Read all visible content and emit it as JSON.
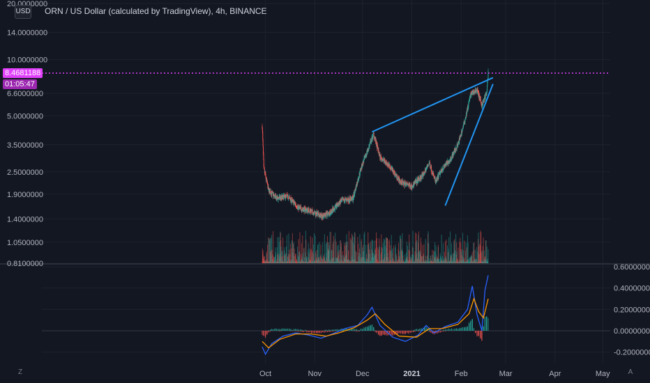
{
  "title": "ORN / US Dollar (calculated by TradingView), 4h, BINANCE",
  "currency_button": "USD",
  "current_price": "8.4681188",
  "countdown": "01:05:47",
  "scale_button": "Z",
  "auto_button": "A",
  "colors": {
    "background": "#131722",
    "up": "#26a69a",
    "down": "#ef5350",
    "trendline": "#2196f3",
    "price_line": "#e040fb",
    "indicator_fast": "#2962ff",
    "indicator_slow": "#ff9800",
    "grid": "#1e222d",
    "text": "#b2b5be"
  },
  "chart_data": [
    {
      "type": "candlestick",
      "title": "ORN / US Dollar (calculated by TradingView), 4h, BINANCE",
      "y_scale": "log",
      "price_ticks": [
        "20.0000000",
        "14.0000000",
        "10.0000000",
        "6.6000000",
        "5.0000000",
        "3.5000000",
        "2.5000000",
        "1.9000000",
        "1.4000000",
        "1.0500000",
        "0.8100000"
      ],
      "price_tick_values": [
        20,
        14,
        10,
        6.6,
        5,
        3.5,
        2.5,
        1.9,
        1.4,
        1.05,
        0.81
      ],
      "x_ticks": [
        "Oct",
        "Nov",
        "Dec",
        "2021",
        "Feb",
        "Mar",
        "Apr",
        "May"
      ],
      "current_price": 8.4681188,
      "close_path": [
        {
          "date": "2020-09-29",
          "price": 4.4
        },
        {
          "date": "2020-09-30",
          "price": 2.6
        },
        {
          "date": "2020-10-03",
          "price": 2.0
        },
        {
          "date": "2020-10-08",
          "price": 1.8
        },
        {
          "date": "2020-10-15",
          "price": 1.85
        },
        {
          "date": "2020-10-22",
          "price": 1.6
        },
        {
          "date": "2020-10-29",
          "price": 1.55
        },
        {
          "date": "2020-11-05",
          "price": 1.45
        },
        {
          "date": "2020-11-10",
          "price": 1.5
        },
        {
          "date": "2020-11-18",
          "price": 1.75
        },
        {
          "date": "2020-11-25",
          "price": 1.8
        },
        {
          "date": "2020-11-30",
          "price": 2.6
        },
        {
          "date": "2020-12-05",
          "price": 3.4
        },
        {
          "date": "2020-12-08",
          "price": 4.0
        },
        {
          "date": "2020-12-12",
          "price": 3.0
        },
        {
          "date": "2020-12-18",
          "price": 2.7
        },
        {
          "date": "2020-12-25",
          "price": 2.2
        },
        {
          "date": "2021-01-01",
          "price": 2.1
        },
        {
          "date": "2021-01-08",
          "price": 2.4
        },
        {
          "date": "2021-01-12",
          "price": 2.8
        },
        {
          "date": "2021-01-16",
          "price": 2.2
        },
        {
          "date": "2021-01-20",
          "price": 2.6
        },
        {
          "date": "2021-01-25",
          "price": 2.9
        },
        {
          "date": "2021-01-30",
          "price": 3.5
        },
        {
          "date": "2021-02-03",
          "price": 4.6
        },
        {
          "date": "2021-02-07",
          "price": 6.5
        },
        {
          "date": "2021-02-11",
          "price": 6.9
        },
        {
          "date": "2021-02-14",
          "price": 5.7
        },
        {
          "date": "2021-02-17",
          "price": 6.6
        },
        {
          "date": "2021-02-18",
          "price": 8.47
        }
      ],
      "trendlines": [
        {
          "name": "upper",
          "from": {
            "date": "2020-12-07",
            "price": 4.1
          },
          "to": {
            "date": "2021-02-21",
            "price": 8.0
          }
        },
        {
          "name": "lower",
          "from": {
            "date": "2021-01-22",
            "price": 1.65
          },
          "to": {
            "date": "2021-02-21",
            "price": 7.4
          }
        }
      ]
    },
    {
      "type": "line",
      "name": "oscillator",
      "y_ticks": [
        "0.6000000",
        "0.4000000",
        "0.2000000",
        "0.0000000",
        "-0.2000000"
      ],
      "y_tick_values": [
        0.6,
        0.4,
        0.2,
        0,
        -0.2
      ],
      "series": [
        {
          "values": [
            {
              "date": "2020-09-29",
              "value": -0.15
            },
            {
              "date": "2020-10-01",
              "value": -0.22
            },
            {
              "date": "2020-10-05",
              "value": -0.12
            },
            {
              "date": "2020-10-12",
              "value": -0.05
            },
            {
              "date": "2020-10-20",
              "value": -0.02
            },
            {
              "date": "2020-10-28",
              "value": -0.04
            },
            {
              "date": "2020-11-05",
              "value": -0.07
            },
            {
              "date": "2020-11-12",
              "value": -0.03
            },
            {
              "date": "2020-11-20",
              "value": 0.02
            },
            {
              "date": "2020-11-28",
              "value": 0.05
            },
            {
              "date": "2020-12-04",
              "value": 0.15
            },
            {
              "date": "2020-12-07",
              "value": 0.22
            },
            {
              "date": "2020-12-12",
              "value": 0.05
            },
            {
              "date": "2020-12-20",
              "value": -0.06
            },
            {
              "date": "2020-12-28",
              "value": -0.1
            },
            {
              "date": "2021-01-05",
              "value": -0.04
            },
            {
              "date": "2021-01-10",
              "value": 0.05
            },
            {
              "date": "2021-01-15",
              "value": -0.02
            },
            {
              "date": "2021-01-22",
              "value": 0.04
            },
            {
              "date": "2021-01-30",
              "value": 0.08
            },
            {
              "date": "2021-02-05",
              "value": 0.2
            },
            {
              "date": "2021-02-08",
              "value": 0.42
            },
            {
              "date": "2021-02-11",
              "value": 0.15
            },
            {
              "date": "2021-02-14",
              "value": 0.0
            },
            {
              "date": "2021-02-16",
              "value": 0.38
            },
            {
              "date": "2021-02-18",
              "value": 0.52
            }
          ]
        },
        {
          "values": [
            {
              "date": "2020-09-29",
              "value": -0.1
            },
            {
              "date": "2020-10-03",
              "value": -0.16
            },
            {
              "date": "2020-10-10",
              "value": -0.08
            },
            {
              "date": "2020-10-20",
              "value": -0.03
            },
            {
              "date": "2020-10-30",
              "value": -0.03
            },
            {
              "date": "2020-11-08",
              "value": -0.05
            },
            {
              "date": "2020-11-16",
              "value": -0.02
            },
            {
              "date": "2020-11-26",
              "value": 0.03
            },
            {
              "date": "2020-12-04",
              "value": 0.1
            },
            {
              "date": "2020-12-09",
              "value": 0.16
            },
            {
              "date": "2020-12-15",
              "value": 0.06
            },
            {
              "date": "2020-12-24",
              "value": -0.05
            },
            {
              "date": "2021-01-04",
              "value": -0.06
            },
            {
              "date": "2021-01-12",
              "value": 0.02
            },
            {
              "date": "2021-01-20",
              "value": 0.02
            },
            {
              "date": "2021-01-30",
              "value": 0.06
            },
            {
              "date": "2021-02-06",
              "value": 0.16
            },
            {
              "date": "2021-02-09",
              "value": 0.3
            },
            {
              "date": "2021-02-12",
              "value": 0.18
            },
            {
              "date": "2021-02-15",
              "value": 0.12
            },
            {
              "date": "2021-02-18",
              "value": 0.3
            }
          ]
        }
      ]
    }
  ]
}
